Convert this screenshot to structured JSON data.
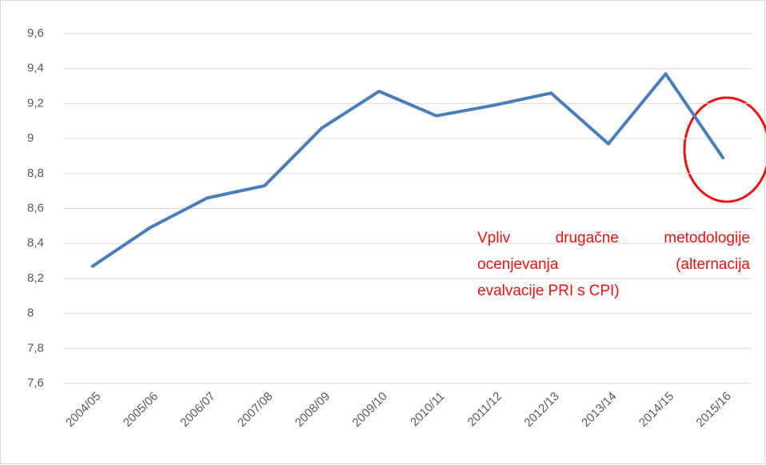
{
  "chart_data": {
    "type": "line",
    "categories": [
      "2004/05",
      "2005/06",
      "2006/07",
      "2007/08",
      "2008/09",
      "2009/10",
      "2010/11",
      "2011/12",
      "2012/13",
      "2013/14",
      "2014/15",
      "2015/16"
    ],
    "values": [
      8.27,
      8.49,
      8.66,
      8.73,
      9.06,
      9.27,
      9.13,
      9.19,
      9.26,
      8.97,
      9.37,
      8.89
    ],
    "color": "#4a7ebb",
    "ylim": [
      7.6,
      9.6
    ],
    "yticks": [
      {
        "value": 7.6,
        "label": "7,6"
      },
      {
        "value": 7.8,
        "label": "7,8"
      },
      8,
      {
        "value": 8.2,
        "label": "8,2"
      },
      {
        "value": 8.4,
        "label": "8,4"
      },
      {
        "value": 8.6,
        "label": "8,6"
      },
      {
        "value": 8.8,
        "label": "8,8"
      },
      9,
      {
        "value": 9.2,
        "label": "9,2"
      },
      {
        "value": 9.4,
        "label": "9,4"
      },
      {
        "value": 9.6,
        "label": "9,6"
      }
    ],
    "grid": true,
    "annotation": [
      [
        "Vpliv",
        "drugačne",
        "metodologije"
      ],
      [
        "ocenjevanja",
        "(alternacija"
      ],
      [
        "evalvacije",
        "PRI",
        "s",
        "CPI)"
      ]
    ],
    "annotation_color": "#ee1111"
  }
}
